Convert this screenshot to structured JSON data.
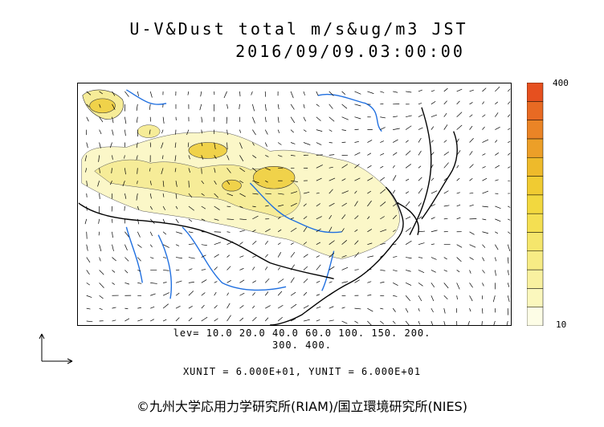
{
  "header": {
    "title_line1": "U-V&Dust total m/s&ug/m3 JST",
    "title_line2": "2016/09/09.03:00:00"
  },
  "colorbar": {
    "max_label": "400",
    "min_label": "10",
    "colors": [
      "#fdfde6",
      "#fbf7bd",
      "#f9f1a0",
      "#f7ec85",
      "#f5e66c",
      "#f4df52",
      "#f2d83f",
      "#f0cb32",
      "#eeba2b",
      "#ec9f28",
      "#ea8426",
      "#e86a23",
      "#e6501f"
    ]
  },
  "legend": {
    "levels_line1": "lev= 10.0 20.0 40.0 60.0 100. 150. 200.",
    "levels_line2": "300. 400.",
    "unit_line": "XUNIT = 6.000E+01, YUNIT = 6.000E+01"
  },
  "footer": {
    "copyright": "©九州大学応用力学研究所(RIAM)/国立環境研究所(NIES)"
  },
  "map_colors": {
    "dust_light": "#fbf7c8",
    "dust_mid": "#f6ec98",
    "dust_core": "#f0d24a",
    "rivers": "#1f6fe0",
    "coast": "#000000"
  }
}
